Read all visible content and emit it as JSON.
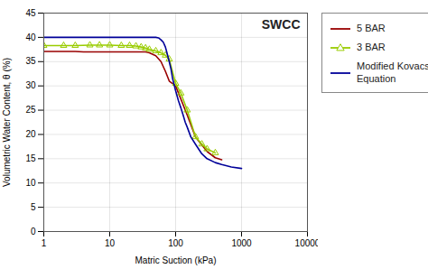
{
  "chart_data": {
    "type": "line",
    "title": "SWCC",
    "xlabel": "Matric Suction (kPa)",
    "ylabel": "Volumetric Water Content, θ (%)",
    "log": "x",
    "grid": true,
    "legend": "right",
    "xlim": [
      1,
      10000
    ],
    "xticks": [
      1,
      10,
      100,
      1000,
      10000
    ],
    "ylim": [
      0,
      45
    ],
    "yticks": [
      0,
      5,
      10,
      15,
      20,
      25,
      30,
      35,
      40,
      45
    ],
    "series": [
      {
        "name": "5 BAR",
        "color": "#990000",
        "x": [
          1,
          2,
          3,
          4,
          5,
          6,
          7,
          8,
          10,
          13,
          17,
          20,
          25,
          30,
          35,
          40,
          50,
          60,
          70,
          80,
          100,
          150,
          200,
          300,
          400,
          500
        ],
        "values": [
          37.1,
          37.1,
          37.1,
          37.0,
          37.0,
          37.0,
          37.0,
          37.0,
          37.0,
          37.0,
          37.0,
          37.0,
          37.0,
          37.0,
          37.0,
          36.8,
          36.2,
          35.0,
          33.0,
          31.0,
          30.0,
          24.0,
          19.5,
          16.5,
          15.2,
          14.8
        ]
      },
      {
        "name": "3 BAR",
        "color": "#99cc00",
        "marker": "triangle",
        "x": [
          1,
          2,
          3,
          5,
          7,
          10,
          15,
          20,
          25,
          30,
          35,
          40,
          50,
          60,
          70,
          80,
          100,
          120,
          150,
          200,
          250,
          300,
          400
        ],
        "values": [
          38.3,
          38.3,
          38.3,
          38.4,
          38.4,
          38.4,
          38.3,
          38.3,
          38.2,
          38.0,
          37.8,
          37.5,
          37.2,
          36.8,
          36.3,
          35.5,
          30.5,
          28.5,
          25.0,
          19.5,
          18.0,
          17.0,
          16.2
        ]
      },
      {
        "name": "Modified Kovacs\nEquation",
        "color": "#000099",
        "x": [
          1,
          2,
          3,
          5,
          7,
          10,
          15,
          20,
          30,
          40,
          50,
          55,
          60,
          65,
          70,
          75,
          80,
          85,
          90,
          100,
          110,
          120,
          130,
          140,
          150,
          170,
          200,
          250,
          300,
          400,
          500,
          700,
          1000
        ],
        "values": [
          40.0,
          40.0,
          40.0,
          40.0,
          40.0,
          40.0,
          40.0,
          40.0,
          40.0,
          40.0,
          40.0,
          39.9,
          39.5,
          39.0,
          38.0,
          36.5,
          35.0,
          33.5,
          31.5,
          29.0,
          27.0,
          25.5,
          24.0,
          22.5,
          21.5,
          19.5,
          18.0,
          16.0,
          15.0,
          14.2,
          13.8,
          13.3,
          13.0
        ]
      }
    ]
  }
}
